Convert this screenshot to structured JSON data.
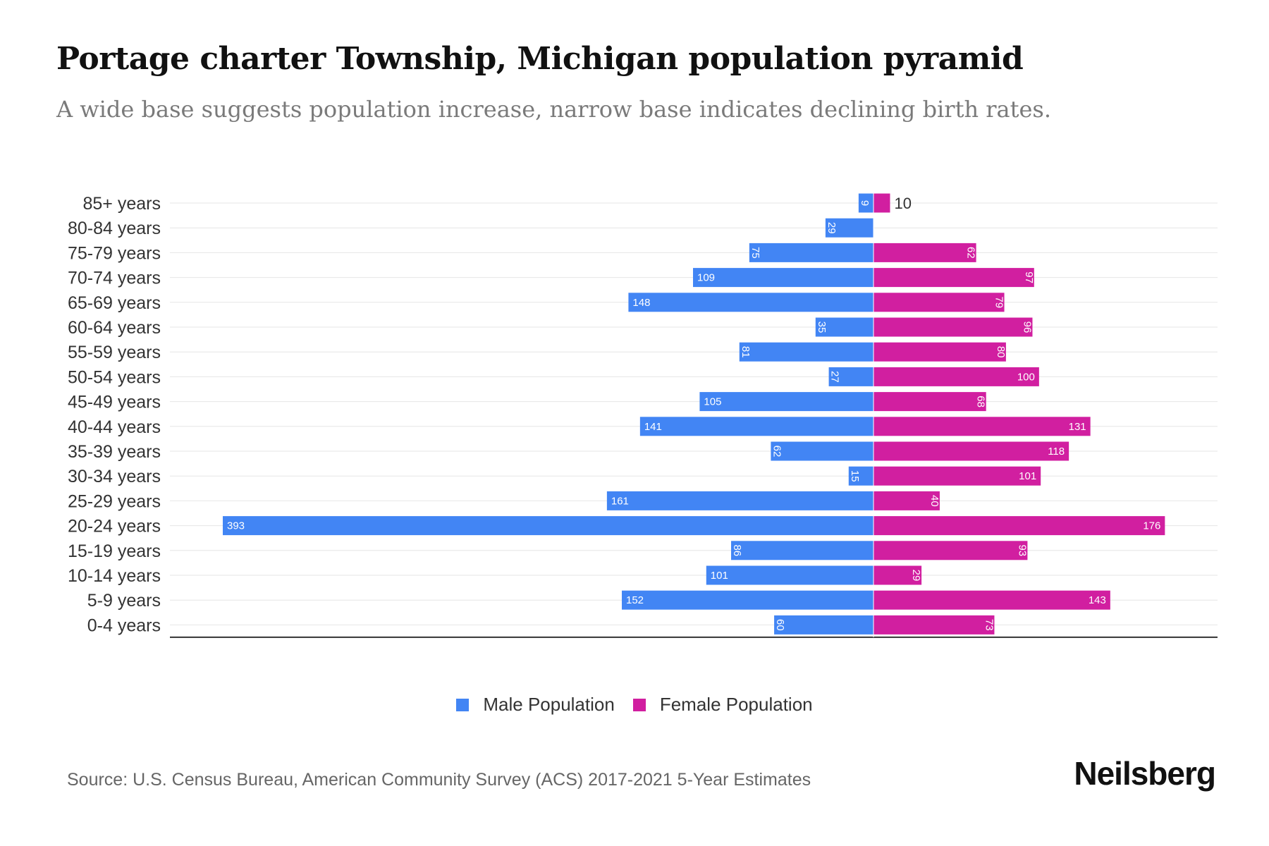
{
  "header": {
    "title": "Portage charter Township, Michigan population pyramid",
    "subtitle": "A wide base suggests population increase, narrow base indicates declining birth rates."
  },
  "legend": {
    "male_label": "Male Population",
    "female_label": "Female Population"
  },
  "footer": {
    "source": "Source: U.S. Census Bureau, American Community Survey (ACS) 2017-2021 5-Year Estimates",
    "brand": "Neilsberg"
  },
  "colors": {
    "male": "#4285f4",
    "female": "#d11fa0",
    "grid": "#e6e6e6",
    "axis": "#333333"
  },
  "chart_data": {
    "type": "bar",
    "orientation": "horizontal-diverging",
    "categories": [
      "85+ years",
      "80-84 years",
      "75-79 years",
      "70-74 years",
      "65-69 years",
      "60-64 years",
      "55-59 years",
      "50-54 years",
      "45-49 years",
      "40-44 years",
      "35-39 years",
      "30-34 years",
      "25-29 years",
      "20-24 years",
      "15-19 years",
      "10-14 years",
      "5-9 years",
      "0-4 years"
    ],
    "series": [
      {
        "name": "Male Population",
        "values": [
          9,
          29,
          75,
          109,
          148,
          35,
          81,
          27,
          105,
          141,
          62,
          15,
          161,
          393,
          86,
          101,
          152,
          60
        ]
      },
      {
        "name": "Female Population",
        "values": [
          10,
          0,
          62,
          97,
          79,
          96,
          80,
          100,
          68,
          131,
          118,
          101,
          40,
          176,
          93,
          29,
          143,
          73
        ]
      }
    ],
    "xlim": [
      -425,
      208
    ],
    "legend_position": "bottom-center",
    "grid": true
  }
}
